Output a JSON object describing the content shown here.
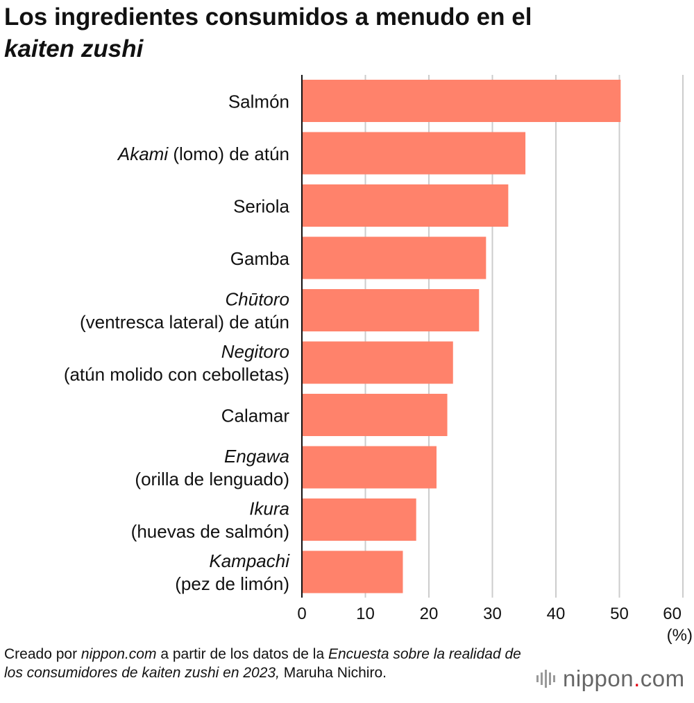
{
  "title": {
    "line1": "Los ingredientes consumidos a menudo en el",
    "line2": "kaiten zushi"
  },
  "chart_data": {
    "type": "bar",
    "orientation": "horizontal",
    "categories": [
      {
        "italic": "",
        "normal": "Salmón",
        "line2": ""
      },
      {
        "italic": "Akami",
        "normal": " (lomo) de atún",
        "line2": ""
      },
      {
        "italic": "",
        "normal": "Seriola",
        "line2": ""
      },
      {
        "italic": "",
        "normal": "Gamba",
        "line2": ""
      },
      {
        "italic": "Chūtoro",
        "normal": "",
        "line2": "(ventresca lateral) de atún"
      },
      {
        "italic": "Negitoro",
        "normal": "",
        "line2": "(atún molido con cebolletas)"
      },
      {
        "italic": "",
        "normal": "Calamar",
        "line2": ""
      },
      {
        "italic": "Engawa",
        "normal": "",
        "line2": "(orilla de lenguado)"
      },
      {
        "italic": "Ikura",
        "normal": "",
        "line2": "(huevas de salmón)"
      },
      {
        "italic": "Kampachi",
        "normal": "",
        "line2": "(pez de limón)"
      }
    ],
    "values": [
      50.2,
      35.2,
      32.5,
      29.0,
      27.9,
      23.8,
      22.9,
      21.2,
      18.0,
      15.9
    ],
    "xlim": [
      0,
      60
    ],
    "xticks": [
      "0",
      "10",
      "20",
      "30",
      "40",
      "50",
      "60"
    ],
    "unit": "(%)",
    "bar_color": "#ff826b",
    "grid": true
  },
  "footer": {
    "p1": "Creado por ",
    "p2": "nippon.com",
    "p3": " a partir de los datos de la ",
    "p4": "Encuesta sobre la realidad de los consumidores de kaiten zushi en 2023,",
    "p5": " Maruha Nichiro."
  },
  "logo": {
    "name": "nippon",
    "dot": ".",
    "suffix": "com"
  }
}
